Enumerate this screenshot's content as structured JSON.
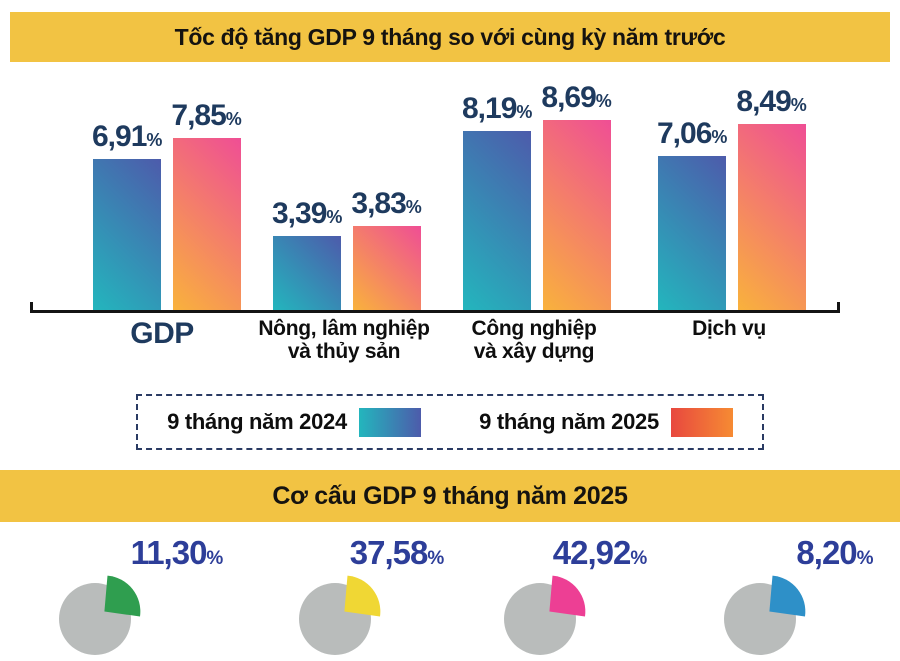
{
  "colors": {
    "header_yellow": "#F2C343",
    "bar2024_start": "#23B6BD",
    "bar2024_end": "#4D5BAB",
    "bar2025_start": "#F9B23C",
    "bar2025_end": "#EF4E95",
    "legend2025_start": "#E8483F",
    "legend2025_end": "#F68B33",
    "legend_border": "#2A3B63",
    "value_navy": "#1E3A5E",
    "share_blue": "#2D3E99",
    "pie_gray": "#B9BCBB",
    "pie_colors": [
      "#2F9E4F",
      "#F0D734",
      "#ED3F94",
      "#2E90C8"
    ]
  },
  "percent_sign": "%",
  "section_growth": {
    "title": "Tốc độ tăng GDP 9 tháng so với cùng kỳ năm trước",
    "groups": [
      {
        "label_lines": [
          "GDP"
        ],
        "v2024": "6,91",
        "v2025": "7,85"
      },
      {
        "label_lines": [
          "Nông, lâm nghiệp",
          "và thủy sản"
        ],
        "v2024": "3,39",
        "v2025": "3,83"
      },
      {
        "label_lines": [
          "Công nghiệp",
          "và xây dựng"
        ],
        "v2024": "8,19",
        "v2025": "8,69"
      },
      {
        "label_lines": [
          "Dịch vụ"
        ],
        "v2024": "7,06",
        "v2025": "8,49"
      }
    ],
    "legend": [
      {
        "label": "9 tháng năm 2024"
      },
      {
        "label": "9 tháng năm 2025"
      }
    ]
  },
  "section_structure": {
    "title": "Cơ cấu GDP 9 tháng năm 2025",
    "shares": [
      "11,30",
      "37,58",
      "42,92",
      "8,20"
    ]
  },
  "chart_data": [
    {
      "type": "bar",
      "title": "Tốc độ tăng GDP 9 tháng so với cùng kỳ năm trước",
      "categories": [
        "GDP",
        "Nông, lâm nghiệp và thủy sản",
        "Công nghiệp và xây dựng",
        "Dịch vụ"
      ],
      "series": [
        {
          "name": "9 tháng năm 2024",
          "values": [
            6.91,
            3.39,
            8.19,
            7.06
          ]
        },
        {
          "name": "9 tháng năm 2025",
          "values": [
            7.85,
            3.83,
            8.69,
            8.49
          ]
        }
      ],
      "unit": "%",
      "ylim": [
        0,
        8.69
      ],
      "grid": false,
      "legend_position": "bottom",
      "data_labels": true
    },
    {
      "type": "pie",
      "title": "Cơ cấu GDP 9 tháng năm 2025",
      "values": [
        11.3,
        37.58,
        42.92,
        8.2
      ],
      "unit": "%",
      "note": "four exploded-slice pies, mostly cropped at image bottom; only percentages visible"
    }
  ]
}
